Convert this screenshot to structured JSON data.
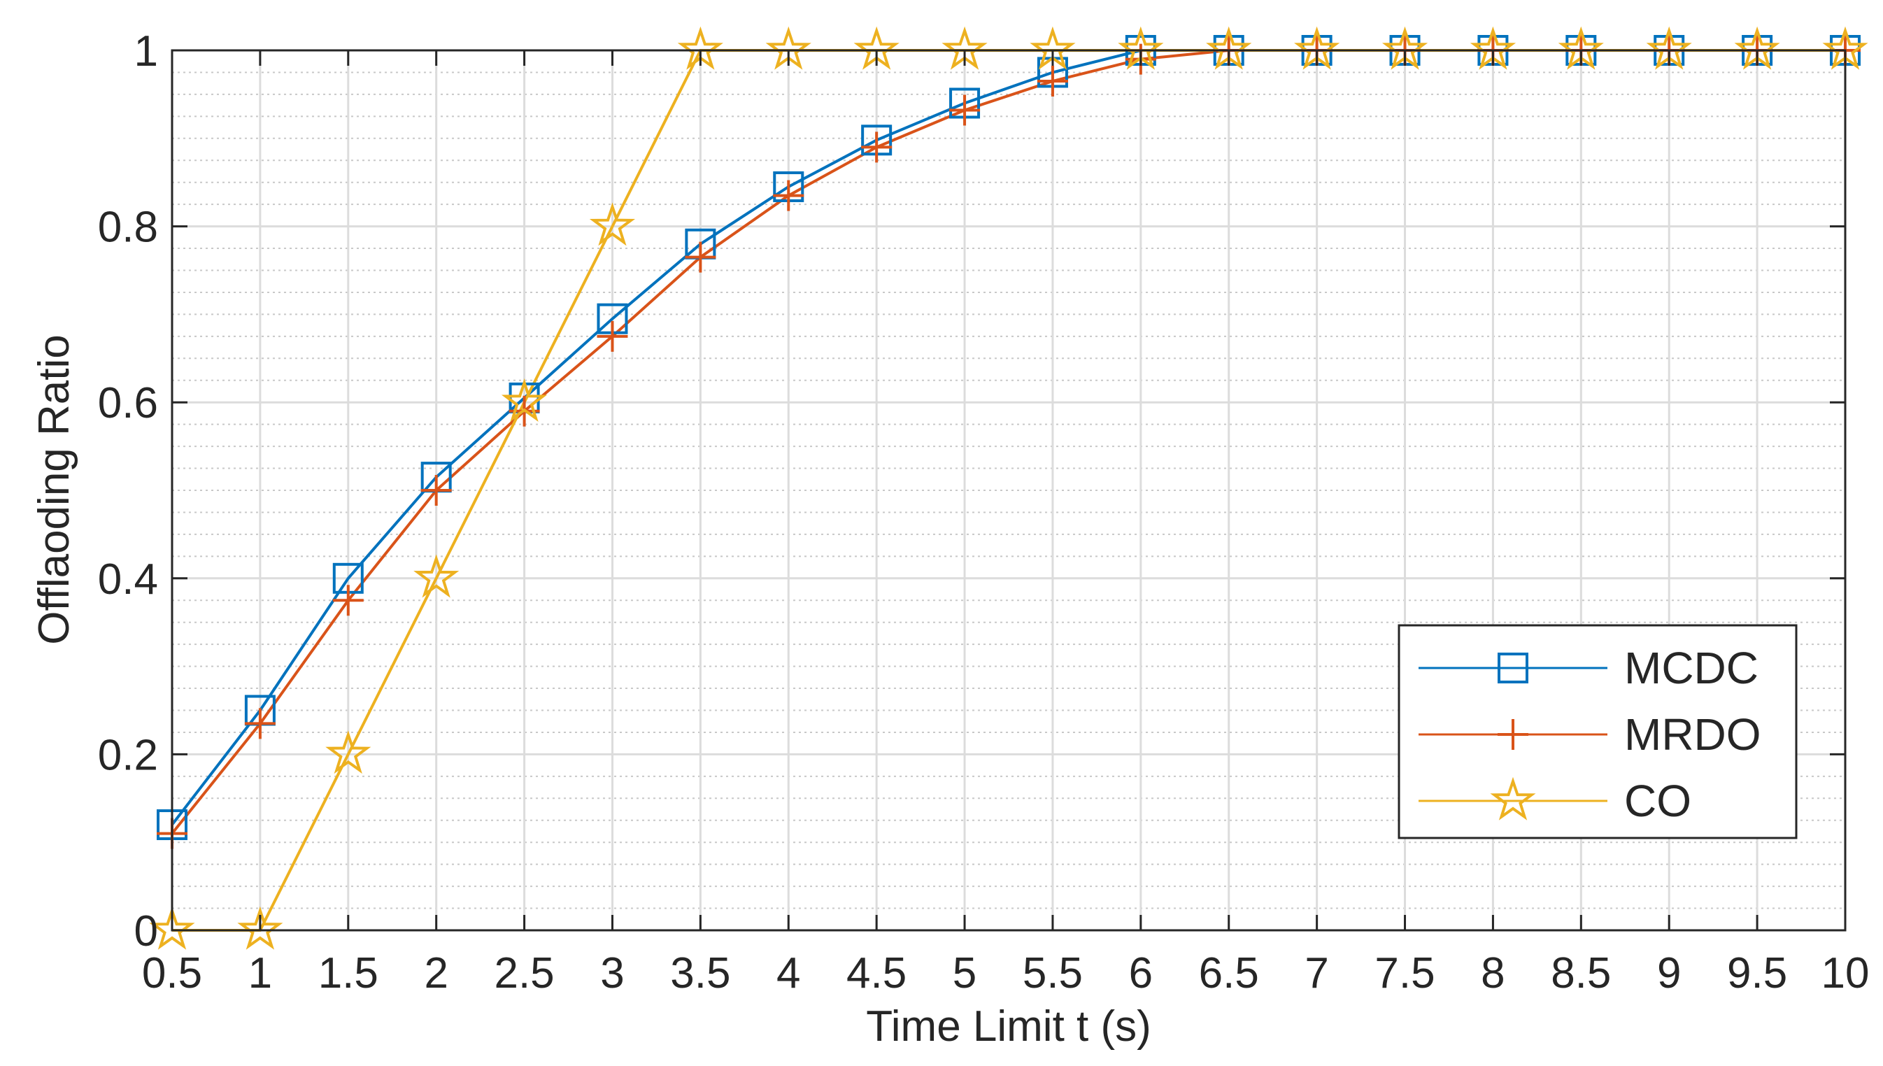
{
  "chart_data": {
    "type": "line",
    "title": "",
    "xlabel": "Time Limit t (s)",
    "ylabel": "Offlaoding Ratio",
    "xlim": [
      0.5,
      10
    ],
    "ylim": [
      0,
      1
    ],
    "xticks": [
      0.5,
      1,
      1.5,
      2,
      2.5,
      3,
      3.5,
      4,
      4.5,
      5,
      5.5,
      6,
      6.5,
      7,
      7.5,
      8,
      8.5,
      9,
      9.5,
      10
    ],
    "yticks": [
      0,
      0.2,
      0.4,
      0.6,
      0.8,
      1
    ],
    "xtick_labels": [
      "0.5",
      "1",
      "1.5",
      "2",
      "2.5",
      "3",
      "3.5",
      "4",
      "4.5",
      "5",
      "5.5",
      "6",
      "6.5",
      "7",
      "7.5",
      "8",
      "8.5",
      "9",
      "9.5",
      "10"
    ],
    "ytick_labels": [
      "0",
      "0.2",
      "0.4",
      "0.6",
      "0.8",
      "1"
    ],
    "grid": true,
    "minor_grid": true,
    "legend_position": "bottom-right",
    "x": [
      0.5,
      1,
      1.5,
      2,
      2.5,
      3,
      3.5,
      4,
      4.5,
      5,
      5.5,
      6,
      6.5,
      7,
      7.5,
      8,
      8.5,
      9,
      9.5,
      10
    ],
    "series": [
      {
        "name": "MCDC",
        "color": "#0072BD",
        "marker": "square",
        "values": [
          0.12,
          0.25,
          0.4,
          0.515,
          0.605,
          0.695,
          0.78,
          0.845,
          0.898,
          0.94,
          0.975,
          1,
          1,
          1,
          1,
          1,
          1,
          1,
          1,
          1
        ]
      },
      {
        "name": "MRDO",
        "color": "#D95319",
        "marker": "plus",
        "values": [
          0.11,
          0.235,
          0.375,
          0.5,
          0.59,
          0.675,
          0.765,
          0.835,
          0.89,
          0.932,
          0.965,
          0.99,
          1,
          1,
          1,
          1,
          1,
          1,
          1,
          1
        ]
      },
      {
        "name": "CO",
        "color": "#EDB120",
        "marker": "star",
        "values": [
          0,
          0,
          0.2,
          0.4,
          0.6,
          0.8,
          1,
          1,
          1,
          1,
          1,
          1,
          1,
          1,
          1,
          1,
          1,
          1,
          1,
          1
        ]
      }
    ]
  }
}
